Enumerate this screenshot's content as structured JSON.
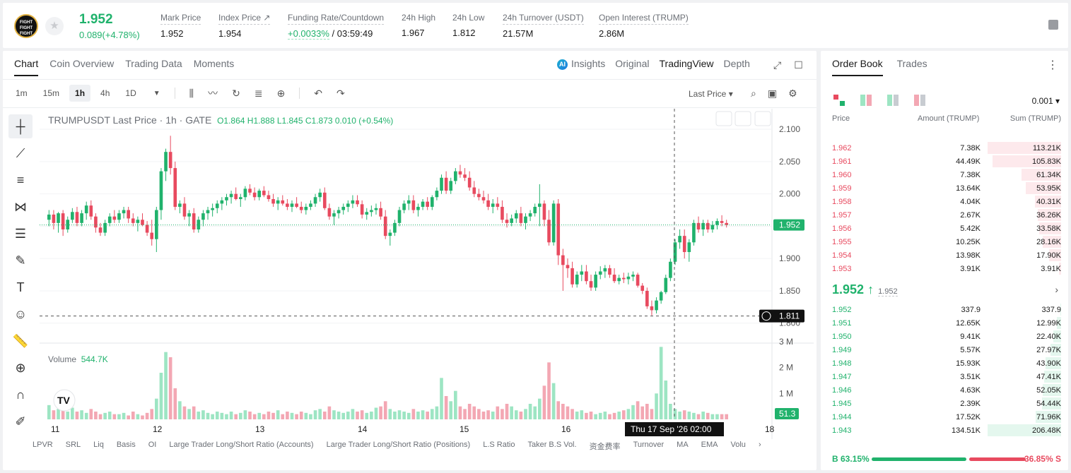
{
  "ticker": {
    "logo_text": "FIGHT FIGHT FIGHT",
    "last_price": "1.952",
    "change": "0.089(+4.78%)",
    "stats": [
      {
        "label": "Mark Price",
        "value": "1.952"
      },
      {
        "label": "Index Price ↗",
        "value": "1.954"
      },
      {
        "label": "Funding Rate/Countdown",
        "value_green": "+0.0033%",
        "value": " / 03:59:49"
      },
      {
        "label": "24h High",
        "value": "1.967"
      },
      {
        "label": "24h Low",
        "value": "1.812"
      },
      {
        "label": "24h Turnover (USDT)",
        "value": "21.57M"
      },
      {
        "label": "Open Interest (TRUMP)",
        "value": "2.86M"
      }
    ]
  },
  "chart_tabs": [
    "Chart",
    "Coin Overview",
    "Trading Data",
    "Moments"
  ],
  "view_tabs": {
    "insights": "Insights",
    "original": "Original",
    "tradingview": "TradingView",
    "depth": "Depth",
    "ai_badge": "AI"
  },
  "timeframes": [
    "1m",
    "15m",
    "1h",
    "4h",
    "1D"
  ],
  "active_timeframe": "1h",
  "price_type": "Last Price",
  "legend": {
    "symbol": "TRUMPUSDT Last Price · 1h · GATE",
    "ohlc": "O1.864 H1.888 L1.845 C1.873 0.010 (+0.54%)"
  },
  "volume": {
    "label": "Volume",
    "value": "544.7K"
  },
  "chart_data": {
    "type": "candlestick",
    "price_axis": [
      "2.100",
      "2.050",
      "2.000",
      "1.950",
      "1.900",
      "1.850",
      "1.800"
    ],
    "volume_axis": [
      "3 M",
      "2 M",
      "1 M"
    ],
    "x_labels": [
      "11",
      "12",
      "13",
      "14",
      "15",
      "16",
      "18"
    ],
    "last_price_tag": "1.952",
    "cursor_price_tag": "1.811",
    "volume_tag": "51.3",
    "cursor_time": "Thu 17 Sep '26   02:00",
    "ylim": [
      1.78,
      2.11
    ],
    "last_price": 1.952,
    "cursor_price": 1.811,
    "colors": {
      "up": "#20b26c",
      "down": "#e84a5f"
    },
    "candles": [
      [
        1.96,
        1.975,
        1.95,
        1.968
      ],
      [
        1.968,
        1.975,
        1.945,
        1.955
      ],
      [
        1.955,
        1.972,
        1.94,
        1.97
      ],
      [
        1.97,
        1.975,
        1.935,
        1.945
      ],
      [
        1.945,
        1.965,
        1.94,
        1.96
      ],
      [
        1.96,
        1.978,
        1.955,
        1.972
      ],
      [
        1.972,
        1.98,
        1.95,
        1.955
      ],
      [
        1.955,
        1.975,
        1.95,
        1.97
      ],
      [
        1.97,
        1.988,
        1.96,
        1.982
      ],
      [
        1.982,
        1.99,
        1.96,
        1.965
      ],
      [
        1.965,
        1.97,
        1.94,
        1.948
      ],
      [
        1.948,
        1.955,
        1.935,
        1.94
      ],
      [
        1.94,
        1.96,
        1.935,
        1.955
      ],
      [
        1.955,
        1.97,
        1.95,
        1.965
      ],
      [
        1.965,
        1.975,
        1.955,
        1.96
      ],
      [
        1.96,
        1.975,
        1.955,
        1.97
      ],
      [
        1.97,
        1.98,
        1.962,
        1.975
      ],
      [
        1.975,
        1.98,
        1.955,
        1.962
      ],
      [
        1.962,
        1.97,
        1.95,
        1.955
      ],
      [
        1.955,
        1.965,
        1.942,
        1.96
      ],
      [
        1.96,
        1.97,
        1.95,
        1.952
      ],
      [
        1.952,
        1.958,
        1.935,
        1.94
      ],
      [
        1.94,
        1.96,
        1.92,
        1.93
      ],
      [
        1.93,
        1.98,
        1.91,
        1.975
      ],
      [
        1.975,
        2.04,
        1.96,
        2.035
      ],
      [
        2.035,
        2.07,
        2.02,
        2.065
      ],
      [
        2.065,
        2.09,
        2.03,
        2.04
      ],
      [
        2.04,
        2.05,
        1.975,
        1.98
      ],
      [
        1.98,
        1.99,
        1.97,
        1.985
      ],
      [
        1.985,
        1.995,
        1.96,
        1.965
      ],
      [
        1.965,
        1.975,
        1.95,
        1.97
      ],
      [
        1.97,
        1.978,
        1.94,
        1.945
      ],
      [
        1.945,
        1.965,
        1.94,
        1.96
      ],
      [
        1.96,
        1.975,
        1.95,
        1.97
      ],
      [
        1.97,
        1.98,
        1.96,
        1.975
      ],
      [
        1.975,
        1.985,
        1.965,
        1.978
      ],
      [
        1.978,
        1.99,
        1.97,
        1.985
      ],
      [
        1.985,
        1.995,
        1.975,
        1.99
      ],
      [
        1.99,
        2.0,
        1.982,
        1.995
      ],
      [
        1.995,
        2.005,
        1.985,
        2.0
      ],
      [
        2.0,
        2.01,
        1.99,
        1.992
      ],
      [
        1.992,
        2.0,
        1.98,
        1.995
      ],
      [
        1.995,
        2.012,
        1.99,
        2.008
      ],
      [
        2.008,
        2.015,
        1.998,
        2.002
      ],
      [
        2.002,
        2.01,
        1.99,
        1.995
      ],
      [
        1.995,
        2.008,
        1.99,
        2.005
      ],
      [
        2.005,
        2.012,
        1.995,
        1.998
      ],
      [
        1.998,
        2.005,
        1.988,
        1.992
      ],
      [
        1.992,
        2.0,
        1.98,
        1.985
      ],
      [
        1.985,
        1.995,
        1.975,
        1.99
      ],
      [
        1.99,
        1.998,
        1.982,
        1.985
      ],
      [
        1.985,
        1.992,
        1.975,
        1.98
      ],
      [
        1.98,
        1.99,
        1.972,
        1.985
      ],
      [
        1.985,
        1.995,
        1.978,
        1.98
      ],
      [
        1.98,
        1.988,
        1.97,
        1.975
      ],
      [
        1.975,
        1.985,
        1.968,
        1.98
      ],
      [
        1.98,
        1.99,
        1.975,
        1.985
      ],
      [
        1.985,
        2.0,
        1.98,
        1.995
      ],
      [
        1.995,
        2.008,
        1.988,
        2.002
      ],
      [
        2.002,
        2.01,
        1.975,
        1.978
      ],
      [
        1.978,
        1.985,
        1.96,
        1.965
      ],
      [
        1.965,
        1.975,
        1.952,
        1.97
      ],
      [
        1.97,
        1.98,
        1.962,
        1.975
      ],
      [
        1.975,
        1.985,
        1.968,
        1.98
      ],
      [
        1.98,
        1.99,
        1.972,
        1.985
      ],
      [
        1.985,
        1.998,
        1.978,
        1.99
      ],
      [
        1.99,
        1.998,
        1.98,
        1.984
      ],
      [
        1.984,
        1.99,
        1.962,
        1.968
      ],
      [
        1.968,
        1.978,
        1.96,
        1.972
      ],
      [
        1.972,
        1.982,
        1.965,
        1.975
      ],
      [
        1.975,
        1.985,
        1.968,
        1.978
      ],
      [
        1.978,
        1.988,
        1.96,
        1.965
      ],
      [
        1.965,
        1.975,
        1.93,
        1.935
      ],
      [
        1.935,
        1.945,
        1.92,
        1.94
      ],
      [
        1.94,
        1.96,
        1.935,
        1.955
      ],
      [
        1.955,
        1.98,
        1.95,
        1.975
      ],
      [
        1.975,
        1.99,
        1.97,
        1.985
      ],
      [
        1.985,
        1.998,
        1.975,
        1.99
      ],
      [
        1.99,
        1.998,
        1.97,
        1.975
      ],
      [
        1.975,
        1.985,
        1.965,
        1.98
      ],
      [
        1.98,
        1.992,
        1.975,
        1.988
      ],
      [
        1.988,
        1.995,
        1.975,
        1.98
      ],
      [
        1.98,
        1.998,
        1.975,
        1.995
      ],
      [
        1.995,
        2.01,
        1.99,
        2.005
      ],
      [
        2.005,
        2.03,
        2.0,
        2.025
      ],
      [
        2.025,
        2.035,
        2.0,
        2.005
      ],
      [
        2.005,
        2.025,
        2.0,
        2.02
      ],
      [
        2.02,
        2.04,
        2.015,
        2.035
      ],
      [
        2.035,
        2.045,
        2.025,
        2.03
      ],
      [
        2.03,
        2.04,
        2.02,
        2.025
      ],
      [
        2.025,
        2.035,
        2.005,
        2.01
      ],
      [
        2.01,
        2.02,
        1.995,
        2.0
      ],
      [
        2.0,
        2.008,
        1.99,
        1.995
      ],
      [
        1.995,
        2.005,
        1.985,
        1.99
      ],
      [
        1.99,
        2.0,
        1.975,
        1.98
      ],
      [
        1.98,
        1.992,
        1.97,
        1.985
      ],
      [
        1.985,
        1.995,
        1.975,
        1.98
      ],
      [
        1.98,
        1.99,
        1.955,
        1.96
      ],
      [
        1.96,
        1.97,
        1.948,
        1.955
      ],
      [
        1.955,
        1.968,
        1.95,
        1.962
      ],
      [
        1.962,
        1.975,
        1.955,
        1.97
      ],
      [
        1.97,
        1.98,
        1.95,
        1.955
      ],
      [
        1.955,
        1.97,
        1.945,
        1.965
      ],
      [
        1.965,
        1.975,
        1.958,
        1.97
      ],
      [
        1.97,
        1.985,
        1.965,
        1.98
      ],
      [
        1.98,
        2.015,
        1.95,
        1.985
      ],
      [
        1.985,
        1.99,
        1.95,
        1.96
      ],
      [
        1.96,
        1.975,
        1.92,
        1.925
      ],
      [
        1.925,
        1.99,
        1.92,
        1.985
      ],
      [
        1.985,
        1.992,
        1.89,
        1.905
      ],
      [
        1.905,
        1.915,
        1.85,
        1.89
      ],
      [
        1.89,
        1.9,
        1.87,
        1.885
      ],
      [
        1.885,
        1.895,
        1.855,
        1.86
      ],
      [
        1.86,
        1.88,
        1.855,
        1.875
      ],
      [
        1.875,
        1.89,
        1.865,
        1.88
      ],
      [
        1.88,
        1.89,
        1.86,
        1.865
      ],
      [
        1.865,
        1.875,
        1.85,
        1.855
      ],
      [
        1.855,
        1.88,
        1.85,
        1.875
      ],
      [
        1.875,
        1.888,
        1.868,
        1.88
      ],
      [
        1.88,
        1.89,
        1.87,
        1.885
      ],
      [
        1.885,
        1.89,
        1.87,
        1.875
      ],
      [
        1.875,
        1.885,
        1.862,
        1.865
      ],
      [
        1.865,
        1.875,
        1.86,
        1.87
      ],
      [
        1.87,
        1.878,
        1.862,
        1.868
      ],
      [
        1.868,
        1.878,
        1.86,
        1.872
      ],
      [
        1.872,
        1.88,
        1.865,
        1.875
      ],
      [
        1.875,
        1.878,
        1.855,
        1.858
      ],
      [
        1.858,
        1.862,
        1.845,
        1.85
      ],
      [
        1.85,
        1.855,
        1.822,
        1.826
      ],
      [
        1.826,
        1.835,
        1.812,
        1.82
      ],
      [
        1.82,
        1.84,
        1.815,
        1.835
      ],
      [
        1.835,
        1.85,
        1.83,
        1.848
      ],
      [
        1.848,
        1.875,
        1.845,
        1.87
      ],
      [
        1.87,
        1.9,
        1.865,
        1.895
      ],
      [
        1.895,
        1.93,
        1.89,
        1.925
      ],
      [
        1.925,
        1.945,
        1.915,
        1.935
      ],
      [
        1.935,
        1.945,
        1.9,
        1.91
      ],
      [
        1.91,
        1.93,
        1.895,
        1.925
      ],
      [
        1.925,
        1.96,
        1.92,
        1.955
      ],
      [
        1.955,
        1.965,
        1.94,
        1.945
      ],
      [
        1.945,
        1.96,
        1.935,
        1.955
      ],
      [
        1.955,
        1.96,
        1.94,
        1.945
      ],
      [
        1.945,
        1.958,
        1.94,
        1.952
      ],
      [
        1.952,
        1.962,
        1.945,
        1.958
      ],
      [
        1.958,
        1.967,
        1.95,
        1.955
      ],
      [
        1.955,
        1.96,
        1.948,
        1.952
      ]
    ],
    "volumes": [
      0.55,
      0.35,
      0.4,
      0.6,
      0.3,
      0.45,
      0.3,
      0.35,
      0.25,
      0.4,
      0.3,
      0.2,
      0.25,
      0.3,
      0.2,
      0.2,
      0.25,
      0.15,
      0.3,
      0.2,
      0.15,
      0.25,
      0.4,
      0.8,
      1.8,
      2.6,
      2.4,
      1.2,
      0.7,
      0.5,
      0.4,
      0.5,
      0.3,
      0.35,
      0.25,
      0.2,
      0.3,
      0.25,
      0.2,
      0.3,
      0.2,
      0.25,
      0.35,
      0.3,
      0.2,
      0.25,
      0.2,
      0.3,
      0.25,
      0.35,
      0.2,
      0.3,
      0.25,
      0.2,
      0.3,
      0.25,
      0.2,
      0.35,
      0.4,
      0.3,
      0.5,
      0.35,
      0.3,
      0.25,
      0.3,
      0.4,
      0.3,
      0.35,
      0.25,
      0.3,
      0.45,
      0.5,
      0.7,
      0.4,
      0.3,
      0.35,
      0.3,
      0.25,
      0.4,
      0.3,
      0.35,
      0.3,
      0.4,
      0.5,
      1.6,
      0.9,
      0.7,
      1.1,
      0.5,
      0.4,
      0.6,
      0.5,
      0.4,
      0.3,
      0.35,
      0.3,
      0.5,
      0.4,
      0.6,
      0.5,
      0.35,
      0.3,
      0.4,
      0.6,
      0.5,
      0.8,
      1.3,
      2.2,
      1.4,
      0.7,
      0.6,
      0.5,
      0.4,
      0.3,
      0.35,
      0.25,
      0.3,
      0.2,
      0.25,
      0.3,
      0.2,
      0.25,
      0.3,
      0.35,
      0.4,
      0.55,
      0.7,
      0.5,
      0.6,
      0.4,
      1.0,
      2.8,
      1.5,
      0.6,
      0.4,
      0.3,
      0.35,
      0.3,
      0.25,
      0.2,
      0.3,
      0.25
    ]
  },
  "indicators": [
    "LPVR",
    "SRL",
    "Liq",
    "Basis",
    "OI",
    "Large Trader Long/Short Ratio (Accounts)",
    "Large Trader Long/Short Ratio (Positions)",
    "L.S Ratio",
    "Taker B.S Vol.",
    "资金费率",
    "Turnover",
    "MA",
    "EMA",
    "Volu"
  ],
  "orderbook": {
    "tabs": [
      "Order Book",
      "Trades"
    ],
    "precision": "0.001",
    "headers": {
      "price": "Price",
      "amount": "Amount (TRUMP)",
      "sum": "Sum (TRUMP)"
    },
    "asks": [
      {
        "p": "1.962",
        "a": "7.38K",
        "s": "113.21K",
        "f": 1.0
      },
      {
        "p": "1.961",
        "a": "44.49K",
        "s": "105.83K",
        "f": 0.93
      },
      {
        "p": "1.960",
        "a": "7.38K",
        "s": "61.34K",
        "f": 0.54
      },
      {
        "p": "1.959",
        "a": "13.64K",
        "s": "53.95K",
        "f": 0.48
      },
      {
        "p": "1.958",
        "a": "4.04K",
        "s": "40.31K",
        "f": 0.36
      },
      {
        "p": "1.957",
        "a": "2.67K",
        "s": "36.26K",
        "f": 0.32
      },
      {
        "p": "1.956",
        "a": "5.42K",
        "s": "33.58K",
        "f": 0.3
      },
      {
        "p": "1.955",
        "a": "10.25K",
        "s": "28.16K",
        "f": 0.25
      },
      {
        "p": "1.954",
        "a": "13.98K",
        "s": "17.90K",
        "f": 0.16
      },
      {
        "p": "1.953",
        "a": "3.91K",
        "s": "3.91K",
        "f": 0.03
      }
    ],
    "mid_price": "1.952",
    "mid_arrow": "↑",
    "mark": "1.952",
    "bids": [
      {
        "p": "1.952",
        "a": "337.9",
        "s": "337.9",
        "f": 0.005
      },
      {
        "p": "1.951",
        "a": "12.65K",
        "s": "12.99K",
        "f": 0.06
      },
      {
        "p": "1.950",
        "a": "9.41K",
        "s": "22.40K",
        "f": 0.11
      },
      {
        "p": "1.949",
        "a": "5.57K",
        "s": "27.97K",
        "f": 0.14
      },
      {
        "p": "1.948",
        "a": "15.93K",
        "s": "43.90K",
        "f": 0.21
      },
      {
        "p": "1.947",
        "a": "3.51K",
        "s": "47.41K",
        "f": 0.23
      },
      {
        "p": "1.946",
        "a": "4.63K",
        "s": "52.05K",
        "f": 0.25
      },
      {
        "p": "1.945",
        "a": "2.39K",
        "s": "54.44K",
        "f": 0.26
      },
      {
        "p": "1.944",
        "a": "17.52K",
        "s": "71.96K",
        "f": 0.35
      },
      {
        "p": "1.943",
        "a": "134.51K",
        "s": "206.48K",
        "f": 1.0
      }
    ],
    "buy_ratio": "B 63.15%",
    "sell_ratio": "36.85% S"
  }
}
